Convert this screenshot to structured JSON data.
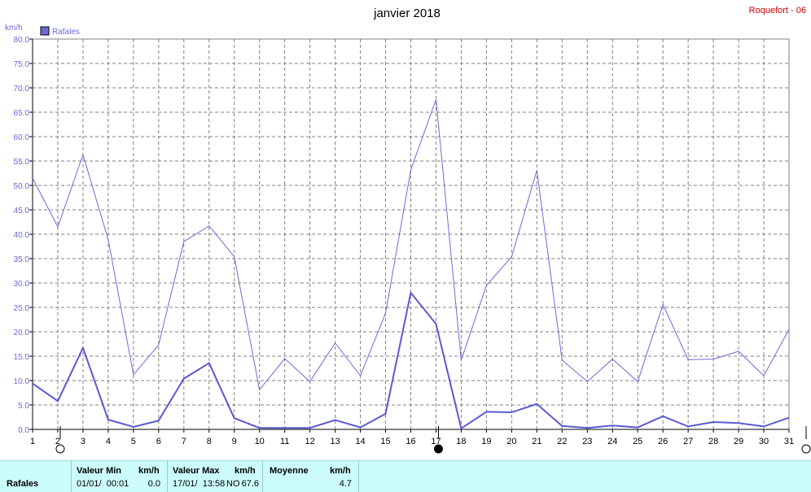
{
  "chart_data": {
    "type": "line",
    "title": "janvier 2018",
    "station": "Roquefort - 06",
    "ylabel": "km/h",
    "ylim": [
      0,
      80
    ],
    "yticks": [
      "0.0",
      "5.0",
      "10.0",
      "15.0",
      "20.0",
      "25.0",
      "30.0",
      "35.0",
      "40.0",
      "45.0",
      "50.0",
      "55.0",
      "60.0",
      "65.0",
      "70.0",
      "75.0",
      "80.0"
    ],
    "x": [
      1,
      2,
      3,
      4,
      5,
      6,
      7,
      8,
      9,
      10,
      11,
      12,
      13,
      14,
      15,
      16,
      17,
      18,
      19,
      20,
      21,
      22,
      23,
      24,
      25,
      26,
      27,
      28,
      29,
      30,
      31
    ],
    "grid": true,
    "legend": "top-left",
    "series": [
      {
        "name": "Rafales",
        "color": "#6a6ad8",
        "values": [
          51.5,
          41.5,
          56.3,
          38.9,
          11.2,
          17.3,
          38.5,
          41.7,
          35.4,
          8.1,
          14.5,
          9.8,
          17.7,
          11.0,
          23.8,
          53.2,
          67.6,
          14.2,
          29.5,
          35.4,
          53.1,
          14.2,
          9.8,
          14.4,
          9.8,
          25.6,
          14.3,
          14.4,
          16.0,
          11.0,
          20.5
        ]
      },
      {
        "name": "",
        "color": "#5a5ad0",
        "values": [
          9.4,
          5.8,
          16.7,
          2.0,
          0.5,
          1.8,
          10.4,
          13.6,
          2.3,
          0.3,
          0.3,
          0.3,
          1.9,
          0.4,
          3.2,
          28.0,
          21.6,
          0.2,
          3.6,
          3.5,
          5.2,
          0.7,
          0.3,
          0.8,
          0.4,
          2.7,
          0.6,
          1.5,
          1.3,
          0.6,
          2.4
        ]
      }
    ],
    "moon_phases": [
      {
        "day": 2,
        "phase": "full"
      },
      {
        "day": 17,
        "phase": "new"
      },
      {
        "day": 31,
        "phase": "full"
      }
    ]
  },
  "stats": {
    "row_label": "Rafales",
    "min_header": "Valeur Min",
    "min_unit": "km/h",
    "min_date": "01/01/  00:01",
    "min_value": "0.0",
    "max_header": "Valeur Max",
    "max_unit": "km/h",
    "max_date": "17/01/  13:58",
    "max_dir": "NO",
    "max_value": "67.6",
    "avg_header": "Moyenne",
    "avg_unit": "km/h",
    "avg_value": "4.7"
  }
}
